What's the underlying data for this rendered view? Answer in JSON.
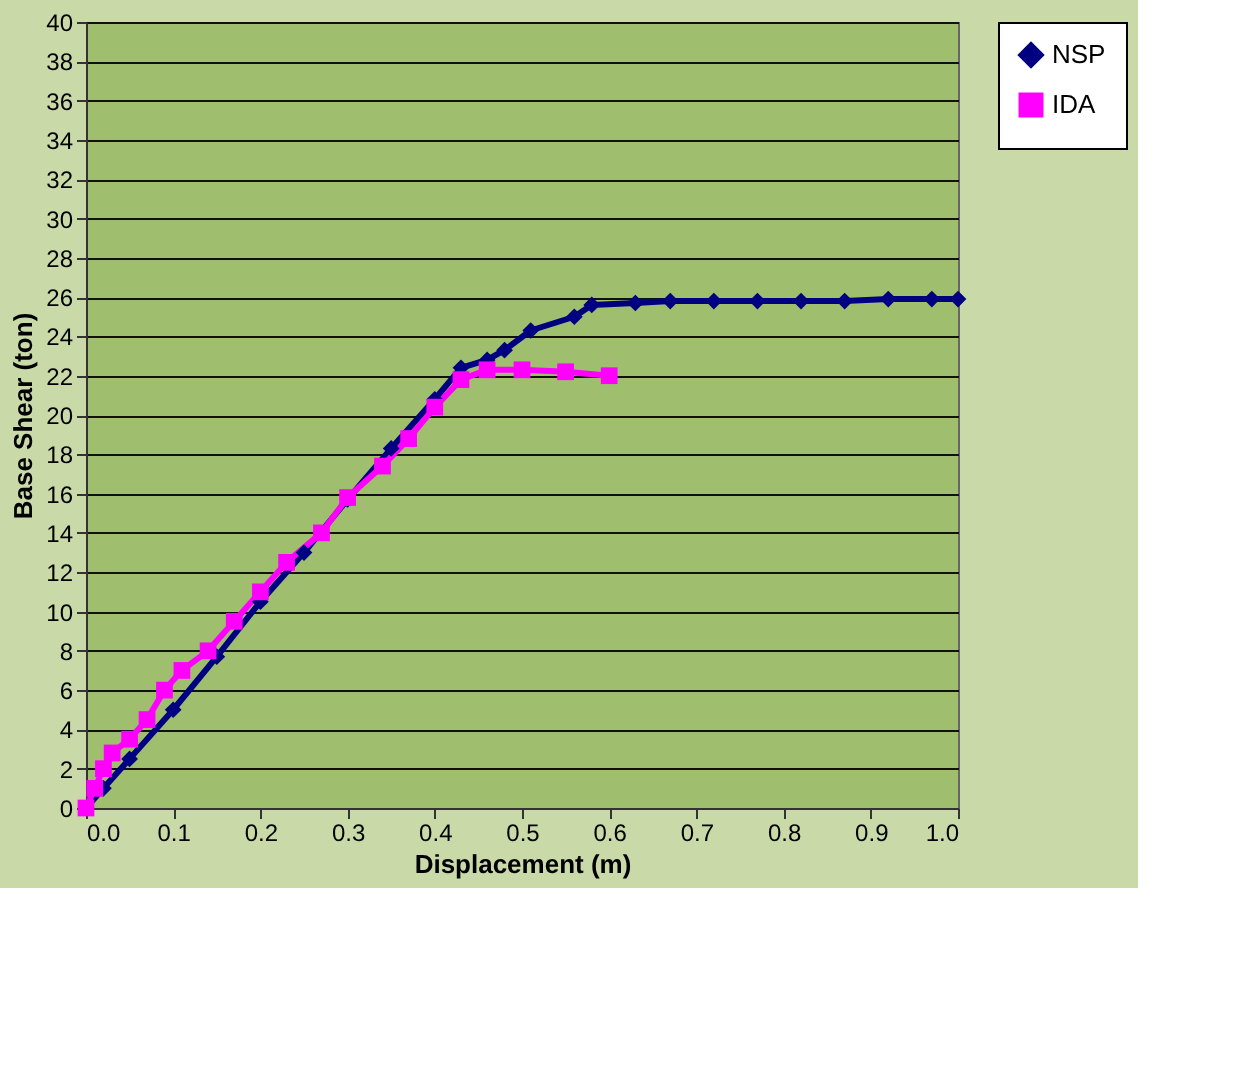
{
  "chart_data": {
    "type": "line",
    "xlabel": "Displacement (m)",
    "ylabel": "Base Shear  (ton)",
    "xlim": [
      0,
      1
    ],
    "xticks": [
      {
        "value": 0,
        "label": "0.0"
      },
      {
        "value": 0.1,
        "label": "0.1"
      },
      {
        "value": 0.2,
        "label": "0.2"
      },
      {
        "value": 0.3,
        "label": "0.3"
      },
      {
        "value": 0.4,
        "label": "0.4"
      },
      {
        "value": 0.5,
        "label": "0.5"
      },
      {
        "value": 0.6,
        "label": "0.6"
      },
      {
        "value": 0.7,
        "label": "0.7"
      },
      {
        "value": 0.8,
        "label": "0.8"
      },
      {
        "value": 0.9,
        "label": "0.9"
      },
      {
        "value": 1,
        "label": "1.0"
      }
    ],
    "ylim": [
      0,
      40
    ],
    "yticks": [
      0,
      2,
      4,
      6,
      8,
      10,
      12,
      14,
      16,
      18,
      20,
      22,
      24,
      26,
      28,
      30,
      32,
      34,
      36,
      38,
      40
    ],
    "grid": "y",
    "legend": "right",
    "line_style": "solid",
    "series": [
      {
        "name": "NSP",
        "color": "#000080",
        "marker": "diamond",
        "x": [
          0,
          0.02,
          0.05,
          0.1,
          0.15,
          0.2,
          0.25,
          0.3,
          0.35,
          0.4,
          0.43,
          0.46,
          0.48,
          0.51,
          0.56,
          0.58,
          0.63,
          0.67,
          0.72,
          0.77,
          0.82,
          0.87,
          0.92,
          0.97,
          1.0
        ],
        "values": [
          0,
          1,
          2.5,
          5,
          7.7,
          10.5,
          13,
          15.7,
          18.3,
          20.8,
          22.4,
          22.8,
          23.3,
          24.3,
          25,
          25.6,
          25.7,
          25.8,
          25.8,
          25.8,
          25.8,
          25.8,
          25.9,
          25.9,
          25.9
        ]
      },
      {
        "name": "IDA",
        "color": "#ff00ff",
        "marker": "square",
        "x": [
          0,
          0.01,
          0.02,
          0.03,
          0.05,
          0.07,
          0.09,
          0.11,
          0.14,
          0.17,
          0.2,
          0.23,
          0.27,
          0.3,
          0.34,
          0.37,
          0.4,
          0.43,
          0.46,
          0.5,
          0.55,
          0.6
        ],
        "values": [
          0,
          1,
          2,
          2.8,
          3.5,
          4.5,
          6,
          7,
          8,
          9.5,
          11,
          12.5,
          14,
          15.8,
          17.4,
          18.8,
          20.4,
          21.8,
          22.3,
          22.3,
          22.2,
          22
        ]
      }
    ]
  }
}
